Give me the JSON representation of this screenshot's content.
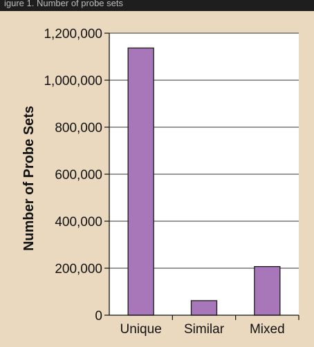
{
  "header": {
    "text": "igure 1. Number of probe sets"
  },
  "colors": {
    "background": "#ead9bf",
    "plot_background": "#ffffff",
    "bar_fill": "#a877b9",
    "bar_stroke": "#1a1a1a",
    "header_band": "#1e1e1e",
    "grid": "#333333"
  },
  "chart_data": {
    "type": "bar",
    "categories": [
      "Unique",
      "Similar",
      "Mixed"
    ],
    "values": [
      1137000,
      62000,
      207000
    ],
    "title": "",
    "xlabel": "",
    "ylabel": "Number of Probe Sets",
    "ylim": [
      0,
      1200000
    ],
    "yticks": [
      0,
      200000,
      400000,
      600000,
      800000,
      1000000,
      1200000
    ],
    "ytick_labels": [
      "0",
      "200,000",
      "400,000",
      "600,000",
      "800,000",
      "1,000,000",
      "1,200,000"
    ],
    "grid": true,
    "legend": "none"
  }
}
